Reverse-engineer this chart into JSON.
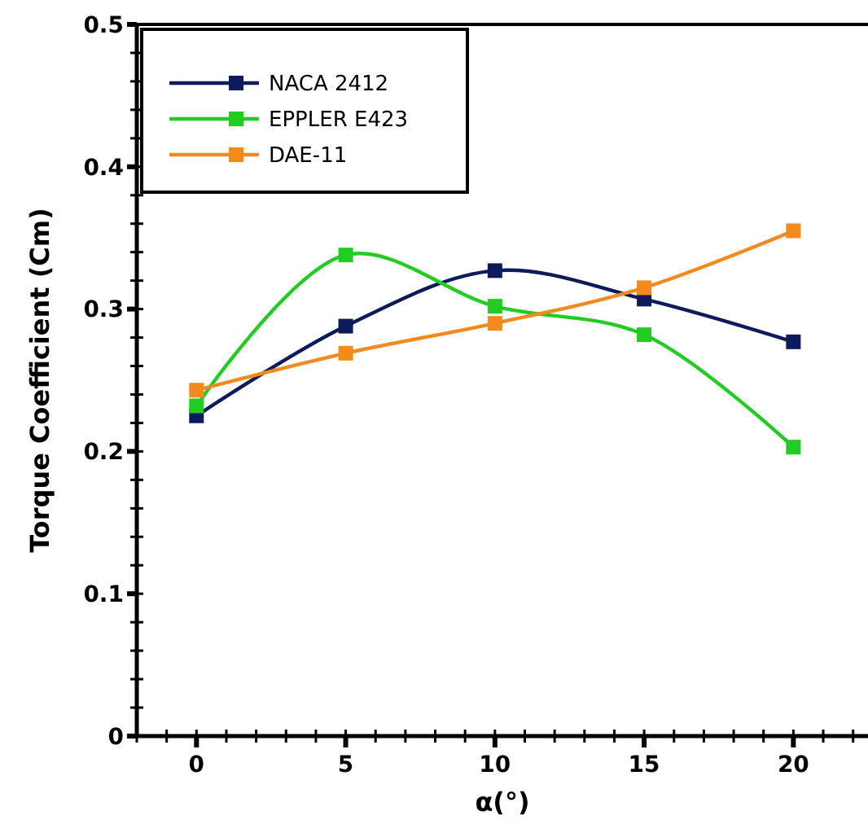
{
  "chart_data": {
    "type": "line",
    "xlabel": "α(°)",
    "ylabel": "Torque Coefficient (Cm)",
    "x": [
      0,
      5,
      10,
      15,
      20
    ],
    "xlim": [
      -2,
      22.5
    ],
    "xticks": [
      0,
      5,
      10,
      15,
      20
    ],
    "ylim": [
      0,
      0.5
    ],
    "yticks": [
      0,
      0.1,
      0.2,
      0.3,
      0.4,
      0.5
    ],
    "grid": false,
    "legend": "top left",
    "marker": "square",
    "line_style": "solid",
    "series": [
      {
        "name": "NACA 2412",
        "color": "#0d1a5c",
        "values": [
          0.225,
          0.288,
          0.327,
          0.307,
          0.277
        ]
      },
      {
        "name": "EPPLER E423",
        "color": "#22cc22",
        "values": [
          0.232,
          0.338,
          0.302,
          0.282,
          0.203
        ]
      },
      {
        "name": "DAE-11",
        "color": "#f28a1e",
        "values": [
          0.243,
          0.269,
          0.29,
          0.315,
          0.355
        ]
      }
    ]
  }
}
